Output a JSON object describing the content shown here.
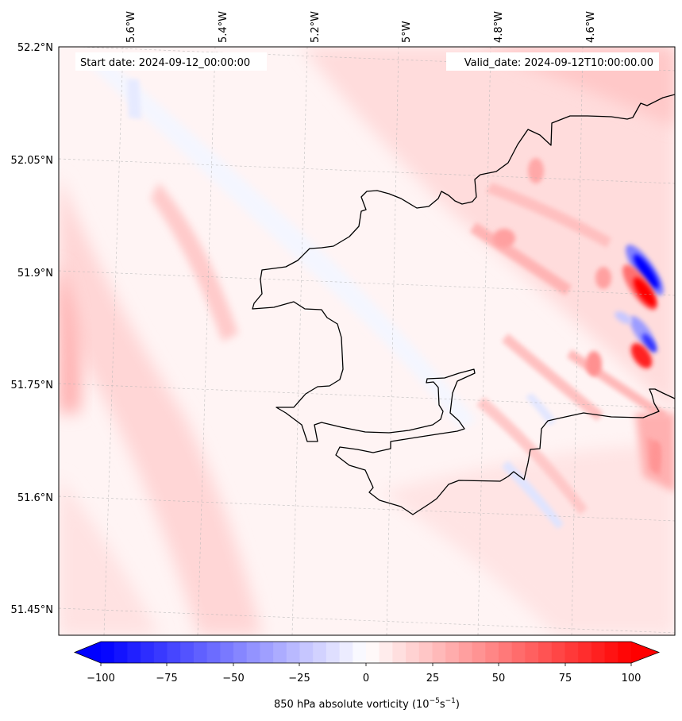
{
  "header": {
    "start_date": "Start date: 2024-09-12_00:00:00",
    "valid_date": "Valid_date: 2024-09-12T10:00:00.00"
  },
  "map": {
    "lon_labels": [
      "5.6°W",
      "5.4°W",
      "5.2°W",
      "5°W",
      "4.8°W",
      "4.6°W"
    ],
    "lat_labels": [
      "52.2°N",
      "52.05°N",
      "51.9°N",
      "51.75°N",
      "51.6°N",
      "51.45°N"
    ],
    "gridlines": true,
    "coastline_color": "#000000"
  },
  "colorbar": {
    "ticks": [
      "−100",
      "−75",
      "−50",
      "−25",
      "0",
      "25",
      "50",
      "75",
      "100"
    ],
    "label_main": "850 hPa absolute vorticity (10",
    "label_exp1": "−5",
    "label_mid": "s",
    "label_exp2": "−1",
    "label_end": ")",
    "range": [
      -100,
      100
    ],
    "step": 5,
    "color_min": "#0000ff",
    "color_mid": "#ffffff",
    "color_max": "#ff0000",
    "extend": "both"
  },
  "chart_data": {
    "type": "heatmap",
    "variable": "850 hPa absolute vorticity",
    "colormap": "bwr",
    "levels": [
      -100,
      100
    ],
    "notable_features": [
      {
        "value": 95,
        "description": "strong positive vorticity band east of 4.6°W near 51.87°N"
      },
      {
        "value": -95,
        "description": "strong negative vorticity band adjacent near 51.9°N"
      },
      {
        "value": 85,
        "description": "positive maximum near 51.78°N east of 4.6°W"
      },
      {
        "value": 30,
        "description": "weak positive band along western edge near 51.85°N"
      },
      {
        "value": -5,
        "description": "weak negative values over the land area"
      }
    ]
  }
}
